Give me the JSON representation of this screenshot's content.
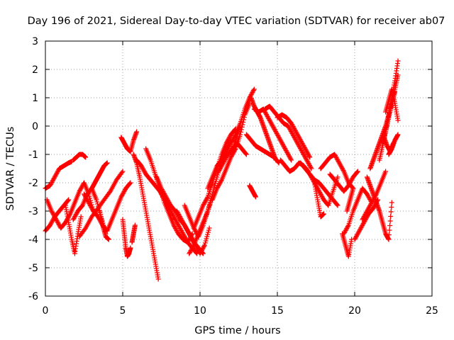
{
  "chart_data": {
    "type": "scatter",
    "title": "Day 196 of 2021, Sidereal Day-to-day VTEC variation (SDTVAR) for receiver ab07",
    "xlabel": "GPS time / hours",
    "ylabel": "SDTVAR / TECUs",
    "xlim": [
      0,
      25
    ],
    "ylim": [
      -6,
      3
    ],
    "xticks": [
      "0",
      "5",
      "10",
      "15",
      "20",
      "25"
    ],
    "yticks": [
      "-6",
      "-5",
      "-4",
      "-3",
      "-2",
      "-1",
      "0",
      "1",
      "2",
      "3"
    ],
    "grid": true,
    "marker": "+",
    "color": "#ff0000",
    "series": [
      {
        "name": "t1",
        "x": [
          0.0,
          0.3,
          0.6,
          0.9,
          1.2,
          1.5,
          1.7
        ],
        "y": [
          -2.2,
          -2.1,
          -1.8,
          -1.5,
          -1.4,
          -1.3,
          -1.25
        ]
      },
      {
        "name": "t2",
        "x": [
          1.8,
          2.0,
          2.2,
          2.4,
          2.6
        ],
        "y": [
          -1.2,
          -1.1,
          -1.0,
          -1.0,
          -1.1
        ]
      },
      {
        "name": "t3",
        "x": [
          0.0,
          0.3,
          0.6,
          0.9,
          1.2,
          1.5
        ],
        "y": [
          -3.7,
          -3.5,
          -3.2,
          -3.0,
          -2.8,
          -2.6
        ]
      },
      {
        "name": "t4",
        "x": [
          0.1,
          0.4,
          0.7,
          1.0,
          1.3,
          1.6,
          1.9,
          2.2,
          2.5,
          2.8,
          3.1
        ],
        "y": [
          -2.6,
          -3.0,
          -3.3,
          -3.6,
          -3.4,
          -3.1,
          -2.7,
          -2.3,
          -2.0,
          -2.4,
          -3.0
        ]
      },
      {
        "name": "t5",
        "x": [
          1.3,
          1.5,
          1.7,
          1.9,
          2.1,
          2.3
        ],
        "y": [
          -2.8,
          -3.4,
          -4.0,
          -4.5,
          -3.8,
          -3.2
        ]
      },
      {
        "name": "t6",
        "x": [
          1.8,
          2.1,
          2.4,
          2.7,
          3.0,
          3.3,
          3.6,
          3.9
        ],
        "y": [
          -3.3,
          -3.0,
          -2.8,
          -2.4,
          -2.2,
          -2.6,
          -3.2,
          -3.8
        ]
      },
      {
        "name": "t7",
        "x": [
          2.2,
          2.6,
          3.0,
          3.4,
          3.8,
          4.2,
          4.6,
          5.0
        ],
        "y": [
          -3.9,
          -3.6,
          -3.2,
          -2.9,
          -2.6,
          -2.3,
          -1.9,
          -1.6
        ]
      },
      {
        "name": "t8",
        "x": [
          3.0,
          3.2,
          3.4,
          3.6,
          3.8,
          4.0
        ],
        "y": [
          -2.2,
          -2.0,
          -1.8,
          -1.6,
          -1.4,
          -1.3
        ]
      },
      {
        "name": "t9",
        "x": [
          2.5,
          2.8,
          3.1,
          3.4,
          3.7,
          4.0,
          4.3,
          4.6,
          4.9,
          5.2,
          5.5
        ],
        "y": [
          -2.4,
          -2.7,
          -3.0,
          -3.2,
          -3.5,
          -3.7,
          -3.3,
          -2.9,
          -2.5,
          -2.2,
          -2.0
        ]
      },
      {
        "name": "t10",
        "x": [
          3.5,
          3.7,
          3.9,
          4.1
        ],
        "y": [
          -3.0,
          -3.5,
          -3.9,
          -4.0
        ]
      },
      {
        "name": "t11",
        "x": [
          5.0,
          5.1,
          5.2,
          5.3,
          5.4,
          5.5
        ],
        "y": [
          -3.3,
          -3.8,
          -4.3,
          -4.6,
          -4.5,
          -4.3
        ]
      },
      {
        "name": "t12",
        "x": [
          5.6,
          5.7,
          5.8
        ],
        "y": [
          -4.1,
          -3.8,
          -3.5
        ]
      },
      {
        "name": "t13",
        "x": [
          4.9,
          5.1,
          5.3,
          5.5,
          5.7,
          5.9
        ],
        "y": [
          -0.4,
          -0.6,
          -0.8,
          -0.9,
          -0.5,
          -0.2
        ]
      },
      {
        "name": "t14",
        "x": [
          5.7,
          5.9,
          6.1,
          6.3,
          6.5,
          6.7,
          6.9,
          7.1,
          7.3
        ],
        "y": [
          -1.0,
          -1.3,
          -1.8,
          -2.4,
          -3.0,
          -3.6,
          -4.2,
          -4.8,
          -5.4
        ]
      },
      {
        "name": "t15",
        "x": [
          5.9,
          6.2,
          6.5,
          6.8,
          7.1,
          7.4,
          7.7,
          8.0,
          8.3,
          8.6,
          8.9,
          9.2,
          9.5,
          9.8
        ],
        "y": [
          -1.2,
          -1.4,
          -1.7,
          -1.9,
          -2.1,
          -2.3,
          -2.6,
          -2.9,
          -3.2,
          -3.5,
          -3.8,
          -4.1,
          -4.3,
          -4.5
        ]
      },
      {
        "name": "t16",
        "x": [
          6.5,
          6.8,
          7.1,
          7.4,
          7.7,
          8.0,
          8.3,
          8.6,
          8.9,
          9.2,
          9.5
        ],
        "y": [
          -0.8,
          -1.2,
          -1.7,
          -2.2,
          -2.7,
          -3.1,
          -3.5,
          -3.8,
          -4.0,
          -4.1,
          -3.8
        ]
      },
      {
        "name": "t17",
        "x": [
          7.2,
          7.5,
          7.8,
          8.1,
          8.4,
          8.7,
          9.0,
          9.3,
          9.6,
          9.9,
          10.2
        ],
        "y": [
          -1.8,
          -2.2,
          -2.5,
          -2.8,
          -3.0,
          -3.3,
          -3.5,
          -3.8,
          -4.1,
          -4.3,
          -4.5
        ]
      },
      {
        "name": "t18",
        "x": [
          8.5,
          8.8,
          9.1,
          9.4,
          9.7,
          10.0,
          10.3,
          10.6
        ],
        "y": [
          -3.0,
          -3.3,
          -3.6,
          -3.9,
          -4.2,
          -4.5,
          -4.2,
          -3.6
        ]
      },
      {
        "name": "t19",
        "x": [
          9.0,
          9.3,
          9.6,
          9.9,
          10.2,
          10.5,
          10.8
        ],
        "y": [
          -2.8,
          -3.2,
          -3.6,
          -3.9,
          -3.5,
          -3.0,
          -2.5
        ]
      },
      {
        "name": "t20",
        "x": [
          9.3,
          9.6,
          9.9,
          10.2,
          10.5,
          10.8,
          11.1,
          11.4,
          11.7,
          12.0
        ],
        "y": [
          -4.5,
          -4.2,
          -3.8,
          -3.4,
          -3.0,
          -2.4,
          -1.8,
          -1.2,
          -0.8,
          -0.5
        ]
      },
      {
        "name": "t21",
        "x": [
          9.6,
          9.9,
          10.2,
          10.5,
          10.8,
          11.1,
          11.4,
          11.7,
          12.0,
          12.3
        ],
        "y": [
          -3.6,
          -3.2,
          -2.8,
          -2.5,
          -2.0,
          -1.5,
          -1.0,
          -0.6,
          -0.3,
          -0.1
        ]
      },
      {
        "name": "t22",
        "x": [
          10.5,
          10.8,
          11.1,
          11.4,
          11.7,
          12.0,
          12.3,
          12.6,
          12.9,
          13.2,
          13.5
        ],
        "y": [
          -2.2,
          -1.8,
          -1.4,
          -1.2,
          -0.9,
          -0.6,
          -0.3,
          0.1,
          0.6,
          1.0,
          1.3
        ]
      },
      {
        "name": "t23",
        "x": [
          10.8,
          11.1,
          11.4,
          11.7,
          12.0,
          12.3,
          12.6,
          12.9,
          13.2
        ],
        "y": [
          -2.6,
          -2.2,
          -1.9,
          -1.5,
          -1.1,
          -0.8,
          -0.3,
          0.4,
          0.8
        ]
      },
      {
        "name": "t24",
        "x": [
          11.2,
          11.5,
          11.8,
          12.1,
          12.4,
          12.7,
          13.0
        ],
        "y": [
          -1.6,
          -1.3,
          -1.0,
          -0.8,
          -0.6,
          -0.8,
          -1.0
        ]
      },
      {
        "name": "t25",
        "x": [
          12.0,
          12.2,
          12.4,
          12.6
        ],
        "y": [
          -1.0,
          -0.7,
          -0.3,
          0.0
        ]
      },
      {
        "name": "t26",
        "x": [
          13.3,
          13.5,
          13.7,
          13.9,
          14.1,
          14.3,
          14.5,
          14.7,
          14.9
        ],
        "y": [
          1.0,
          0.7,
          0.5,
          0.3,
          0.0,
          -0.3,
          -0.6,
          -0.9,
          -1.2
        ]
      },
      {
        "name": "t27",
        "x": [
          13.5,
          13.8,
          14.1,
          14.4,
          14.7,
          15.0,
          15.3,
          15.6,
          15.9
        ],
        "y": [
          0.6,
          0.5,
          0.6,
          0.3,
          0.0,
          -0.3,
          -0.6,
          -0.9,
          -1.2
        ]
      },
      {
        "name": "t28",
        "x": [
          13.0,
          13.3,
          13.6,
          13.9,
          14.2,
          14.5,
          14.8,
          15.1
        ],
        "y": [
          -0.3,
          -0.5,
          -0.7,
          -0.8,
          -0.9,
          -1.0,
          -1.1,
          -1.3
        ]
      },
      {
        "name": "t29",
        "x": [
          14.2,
          14.5,
          14.8,
          15.1,
          15.4,
          15.7,
          16.0,
          16.3,
          16.6,
          16.9,
          17.2
        ],
        "y": [
          0.6,
          0.7,
          0.5,
          0.3,
          0.1,
          0.0,
          -0.3,
          -0.6,
          -0.9,
          -1.2,
          -1.5
        ]
      },
      {
        "name": "t30",
        "x": [
          15.0,
          15.3,
          15.6,
          15.9,
          16.2,
          16.5,
          16.8,
          17.1
        ],
        "y": [
          0.3,
          0.4,
          0.3,
          0.1,
          -0.2,
          -0.5,
          -0.8,
          -1.1
        ]
      },
      {
        "name": "t31",
        "x": [
          15.2,
          15.5,
          15.8,
          16.1,
          16.4,
          16.7,
          17.0
        ],
        "y": [
          -1.2,
          -1.4,
          -1.6,
          -1.5,
          -1.3,
          -1.4,
          -1.6
        ]
      },
      {
        "name": "t32",
        "x": [
          13.2,
          13.4,
          13.6
        ],
        "y": [
          -2.1,
          -2.3,
          -2.5
        ]
      },
      {
        "name": "t33",
        "x": [
          16.5,
          16.8,
          17.1,
          17.4,
          17.7,
          18.0,
          18.3,
          18.6,
          18.9
        ],
        "y": [
          -1.3,
          -1.5,
          -1.7,
          -1.9,
          -2.0,
          -2.2,
          -2.4,
          -2.6,
          -2.8
        ]
      },
      {
        "name": "t34",
        "x": [
          17.1,
          17.4,
          17.7,
          18.0,
          18.3,
          18.6,
          18.9
        ],
        "y": [
          -1.7,
          -2.0,
          -2.3,
          -2.6,
          -2.8,
          -2.3,
          -1.8
        ]
      },
      {
        "name": "t35",
        "x": [
          17.4,
          17.6,
          17.8,
          18.0
        ],
        "y": [
          -2.0,
          -2.6,
          -3.2,
          -3.1
        ]
      },
      {
        "name": "t36",
        "x": [
          17.8,
          18.1,
          18.4,
          18.7,
          19.0,
          19.3,
          19.6,
          19.9
        ],
        "y": [
          -1.5,
          -1.3,
          -1.1,
          -1.0,
          -1.3,
          -1.6,
          -2.0,
          -2.2
        ]
      },
      {
        "name": "t37",
        "x": [
          18.4,
          18.7,
          19.0,
          19.3,
          19.6,
          19.9,
          20.2
        ],
        "y": [
          -1.7,
          -1.9,
          -2.1,
          -2.3,
          -2.1,
          -1.8,
          -1.6
        ]
      },
      {
        "name": "t38",
        "x": [
          19.2,
          19.4,
          19.6,
          19.8
        ],
        "y": [
          -3.8,
          -4.2,
          -4.6,
          -4.0
        ]
      },
      {
        "name": "t39",
        "x": [
          19.3,
          19.6,
          19.9,
          20.2,
          20.5,
          20.8,
          21.1
        ],
        "y": [
          -3.8,
          -3.5,
          -3.0,
          -2.6,
          -2.2,
          -2.4,
          -2.7
        ]
      },
      {
        "name": "t40",
        "x": [
          19.5,
          19.7,
          19.9
        ],
        "y": [
          -3.0,
          -2.6,
          -2.2
        ]
      },
      {
        "name": "t41",
        "x": [
          20.0,
          20.3,
          20.6,
          20.9,
          21.2,
          21.5
        ],
        "y": [
          -4.0,
          -3.7,
          -3.4,
          -3.1,
          -2.9,
          -2.6
        ]
      },
      {
        "name": "t42",
        "x": [
          20.5,
          20.8,
          21.1,
          21.4,
          21.7,
          22.0
        ],
        "y": [
          -3.3,
          -3.0,
          -2.7,
          -2.4,
          -2.0,
          -1.6
        ]
      },
      {
        "name": "t43",
        "x": [
          20.8,
          21.0,
          21.2,
          21.4,
          21.6,
          21.8,
          22.0,
          22.2,
          22.4
        ],
        "y": [
          -1.8,
          -2.1,
          -2.4,
          -2.7,
          -3.0,
          -3.4,
          -3.8,
          -4.0,
          -2.7
        ]
      },
      {
        "name": "t44",
        "x": [
          21.0,
          21.2,
          21.4,
          21.6,
          21.8,
          22.0,
          22.2,
          22.4,
          22.6
        ],
        "y": [
          -1.5,
          -1.2,
          -0.9,
          -0.6,
          -0.3,
          0.0,
          0.4,
          0.8,
          1.2
        ]
      },
      {
        "name": "t45",
        "x": [
          21.6,
          21.8,
          22.0,
          22.2,
          22.4,
          22.6,
          22.8
        ],
        "y": [
          -1.2,
          -0.7,
          -0.2,
          0.4,
          1.0,
          1.6,
          2.3
        ]
      },
      {
        "name": "t46",
        "x": [
          21.8,
          22.0,
          22.2,
          22.4,
          22.6,
          22.8
        ],
        "y": [
          -0.6,
          -0.2,
          0.3,
          0.8,
          1.3,
          1.8
        ]
      },
      {
        "name": "t47",
        "x": [
          22.0,
          22.2,
          22.4,
          22.6,
          22.8
        ],
        "y": [
          0.5,
          0.9,
          1.3,
          0.8,
          0.2
        ]
      },
      {
        "name": "t48",
        "x": [
          22.2,
          22.4,
          22.6,
          22.8
        ],
        "y": [
          -1.0,
          -0.8,
          -0.5,
          -0.3
        ]
      },
      {
        "name": "t49",
        "x": [
          21.9,
          22.1,
          22.3,
          22.5
        ],
        "y": [
          -0.4,
          -0.7,
          -0.9,
          -0.6
        ]
      }
    ]
  }
}
